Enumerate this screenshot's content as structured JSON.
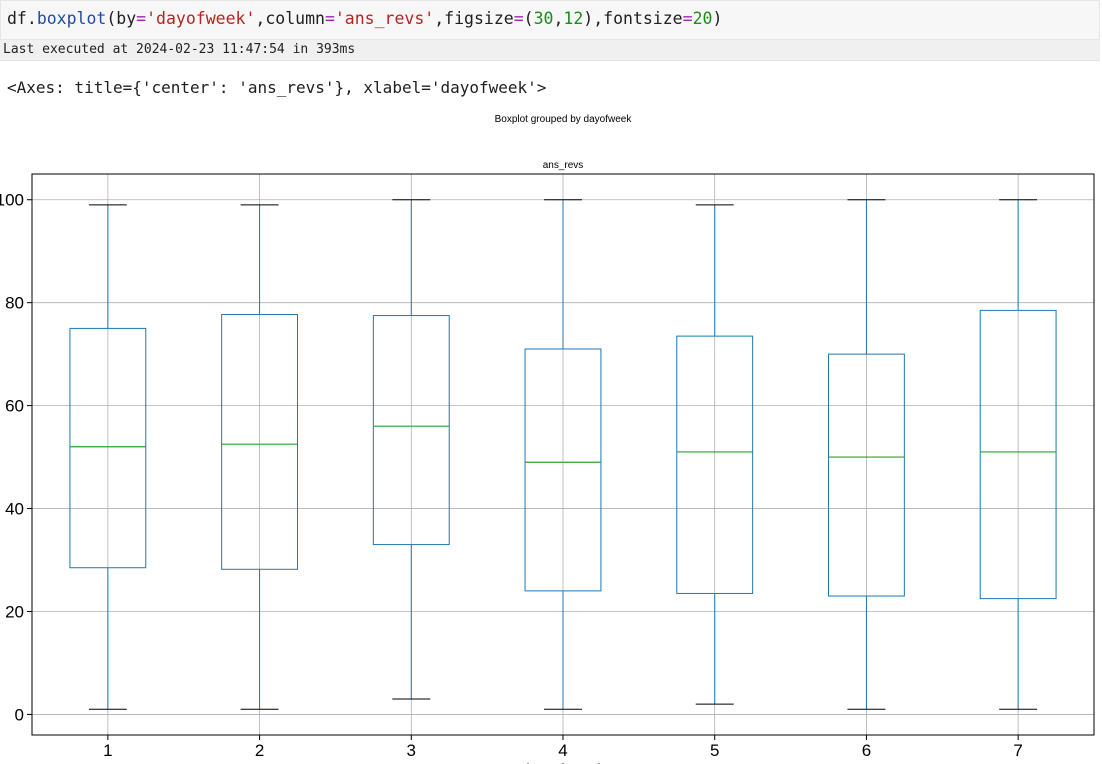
{
  "cell": {
    "code": {
      "obj": "df",
      "dot": ".",
      "func": "boxplot",
      "open": "(",
      "by_kw": "by",
      "eq1": "=",
      "by_val": "'dayofweek'",
      "comma1": ",",
      "column_kw": "column",
      "eq2": "=",
      "column_val": "'ans_revs'",
      "comma2": ",",
      "figsize_kw": "figsize",
      "eq3": "=",
      "paren_open": "(",
      "fig_w": "30",
      "comma3": ",",
      "fig_h": "12",
      "paren_close": ")",
      "comma4": ",",
      "fontsize_kw": "fontsize",
      "eq4": "=",
      "fontsize_val": "20",
      "close": ")"
    },
    "execution_info": "Last executed at 2024-02-23 11:47:54 in 393ms",
    "output_repr": "<Axes: title={'center': 'ans_revs'}, xlabel='dayofweek'>"
  },
  "colors": {
    "box": "#1f77b4",
    "median": "#2ca02c",
    "whisker_cap": "#000000",
    "grid": "#b0b0b0",
    "axes": "#000000"
  },
  "chart_data": {
    "type": "boxplot",
    "suptitle": "Boxplot grouped by dayofweek",
    "title": "ans_revs",
    "xlabel": "dayofweek",
    "ylabel": "",
    "categories": [
      "1",
      "2",
      "3",
      "4",
      "5",
      "6",
      "7"
    ],
    "ylim": [
      -4,
      105
    ],
    "yticks": [
      0,
      20,
      40,
      60,
      80,
      100
    ],
    "grid": true,
    "boxes": [
      {
        "category": "1",
        "min": 1,
        "q1": 28.5,
        "median": 52,
        "q3": 75,
        "max": 99
      },
      {
        "category": "2",
        "min": 1,
        "q1": 28.2,
        "median": 52.5,
        "q3": 77.7,
        "max": 99
      },
      {
        "category": "3",
        "min": 3,
        "q1": 33,
        "median": 56,
        "q3": 77.5,
        "max": 100
      },
      {
        "category": "4",
        "min": 1,
        "q1": 24,
        "median": 49,
        "q3": 71,
        "max": 100
      },
      {
        "category": "5",
        "min": 2,
        "q1": 23.5,
        "median": 51,
        "q3": 73.5,
        "max": 99
      },
      {
        "category": "6",
        "min": 1,
        "q1": 23,
        "median": 50,
        "q3": 70,
        "max": 100
      },
      {
        "category": "7",
        "min": 1,
        "q1": 22.5,
        "median": 51,
        "q3": 78.5,
        "max": 100
      }
    ]
  }
}
